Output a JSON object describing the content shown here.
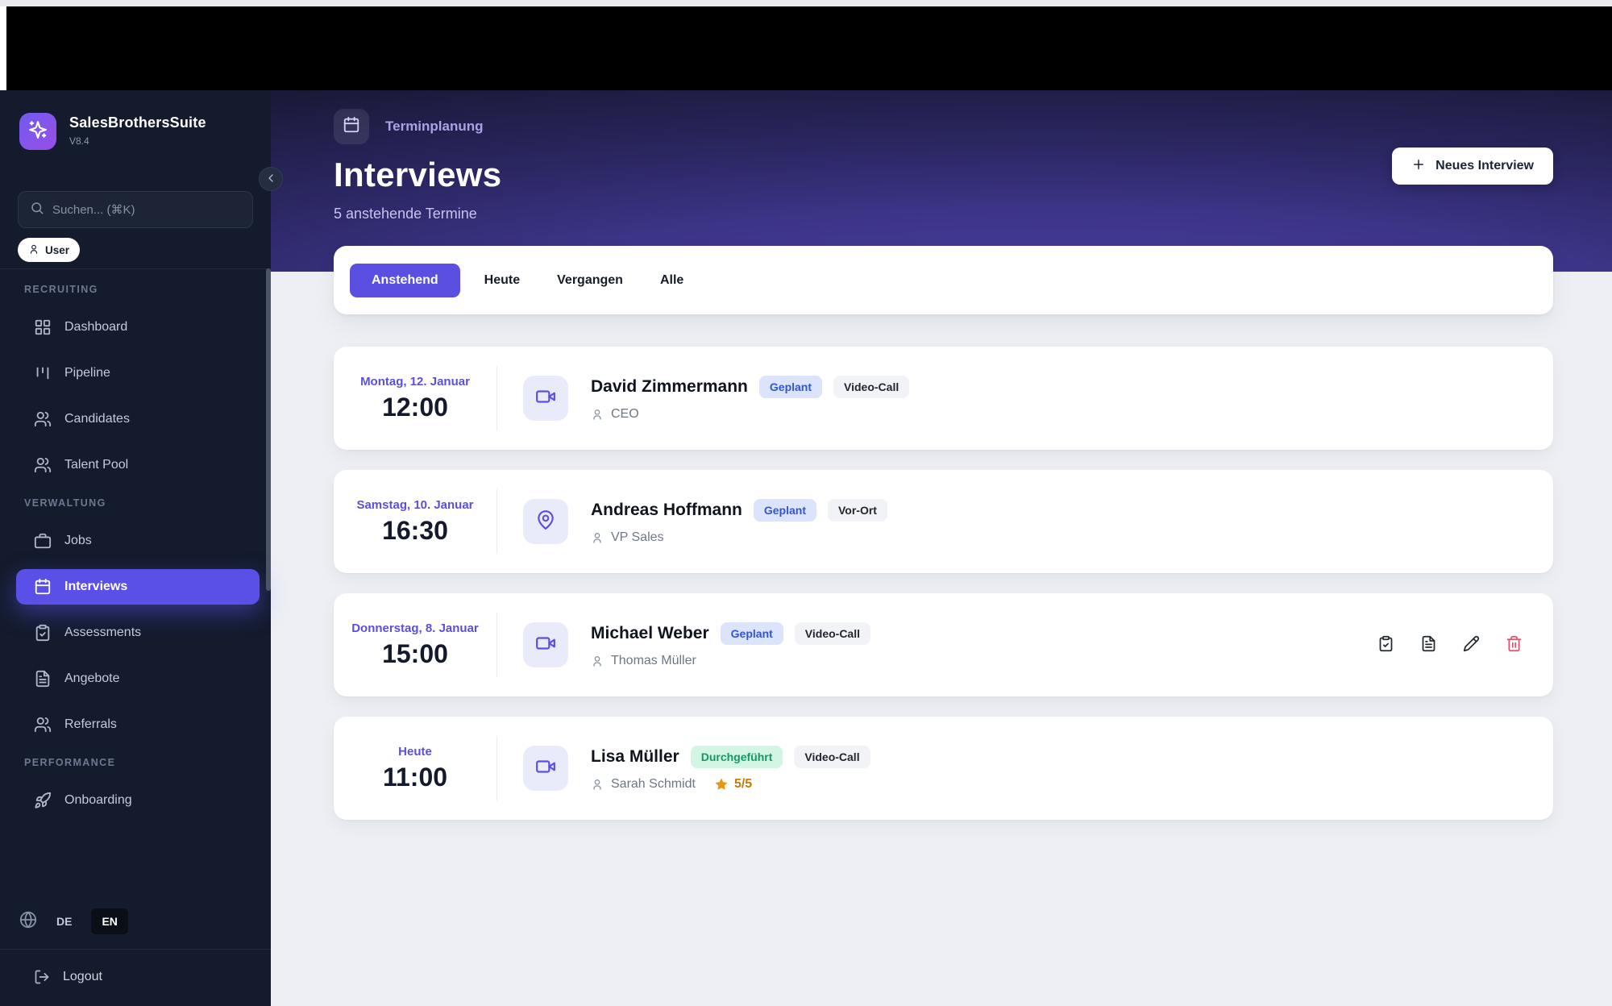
{
  "app": {
    "name": "SalesBrothersSuite",
    "version": "V8.4"
  },
  "sidebar": {
    "search_placeholder": "Suchen... (⌘K)",
    "user_label": "User",
    "sections": [
      {
        "label": "RECRUITING",
        "items": [
          {
            "icon": "layout-grid",
            "label": "Dashboard",
            "active": false
          },
          {
            "icon": "kanban",
            "label": "Pipeline",
            "active": false
          },
          {
            "icon": "users",
            "label": "Candidates",
            "active": false
          },
          {
            "icon": "users",
            "label": "Talent Pool",
            "active": false
          }
        ]
      },
      {
        "label": "VERWALTUNG",
        "items": [
          {
            "icon": "briefcase",
            "label": "Jobs",
            "active": false
          },
          {
            "icon": "calendar",
            "label": "Interviews",
            "active": true
          },
          {
            "icon": "clipboard-check",
            "label": "Assessments",
            "active": false
          },
          {
            "icon": "file-text",
            "label": "Angebote",
            "active": false
          },
          {
            "icon": "users",
            "label": "Referrals",
            "active": false
          }
        ]
      },
      {
        "label": "PERFORMANCE",
        "items": [
          {
            "icon": "rocket",
            "label": "Onboarding",
            "active": false
          }
        ]
      }
    ],
    "language": {
      "options": [
        "DE",
        "EN"
      ],
      "selected": "EN"
    },
    "logout_label": "Logout"
  },
  "header": {
    "breadcrumb": "Terminplanung",
    "title": "Interviews",
    "subtitle": "5 anstehende Termine",
    "new_button_label": "Neues Interview"
  },
  "tabs": [
    {
      "label": "Anstehend",
      "active": true
    },
    {
      "label": "Heute",
      "active": false
    },
    {
      "label": "Vergangen",
      "active": false
    },
    {
      "label": "Alle",
      "active": false
    }
  ],
  "interviews": [
    {
      "date": "Montag, 12. Januar",
      "time": "12:00",
      "type_icon": "video",
      "name": "David Zimmermann",
      "status_label": "Geplant",
      "status_variant": "scheduled",
      "mode_label": "Video-Call",
      "person": "CEO",
      "rating": null,
      "actions": null
    },
    {
      "date": "Samstag, 10. Januar",
      "time": "16:30",
      "type_icon": "map-pin",
      "name": "Andreas Hoffmann",
      "status_label": "Geplant",
      "status_variant": "scheduled",
      "mode_label": "Vor-Ort",
      "person": "VP Sales",
      "rating": null,
      "actions": null
    },
    {
      "date": "Donnerstag, 8. Januar",
      "time": "15:00",
      "type_icon": "video",
      "name": "Michael Weber",
      "status_label": "Geplant",
      "status_variant": "scheduled",
      "mode_label": "Video-Call",
      "person": "Thomas Müller",
      "rating": null,
      "actions": [
        "clipboard-check",
        "file-text",
        "edit",
        "delete"
      ]
    },
    {
      "date": "Heute",
      "time": "11:00",
      "type_icon": "video",
      "name": "Lisa Müller",
      "status_label": "Durchgeführt",
      "status_variant": "done",
      "mode_label": "Video-Call",
      "person": "Sarah Schmidt",
      "rating": "5/5",
      "actions": null
    }
  ],
  "colors": {
    "accent": "#5a4fe0",
    "sidebar_bg": "#141b2d",
    "header_gradient_center": "#4c41a6",
    "header_gradient_edge": "#14132a",
    "status_scheduled_bg": "#dbe4fa",
    "status_scheduled_text": "#3156d3",
    "status_done_bg": "#d2f6e3",
    "status_done_text": "#129a62",
    "badge_neutral_bg": "#f2f3f6",
    "rating_star": "#e8950f",
    "delete_icon": "#e0516d"
  }
}
